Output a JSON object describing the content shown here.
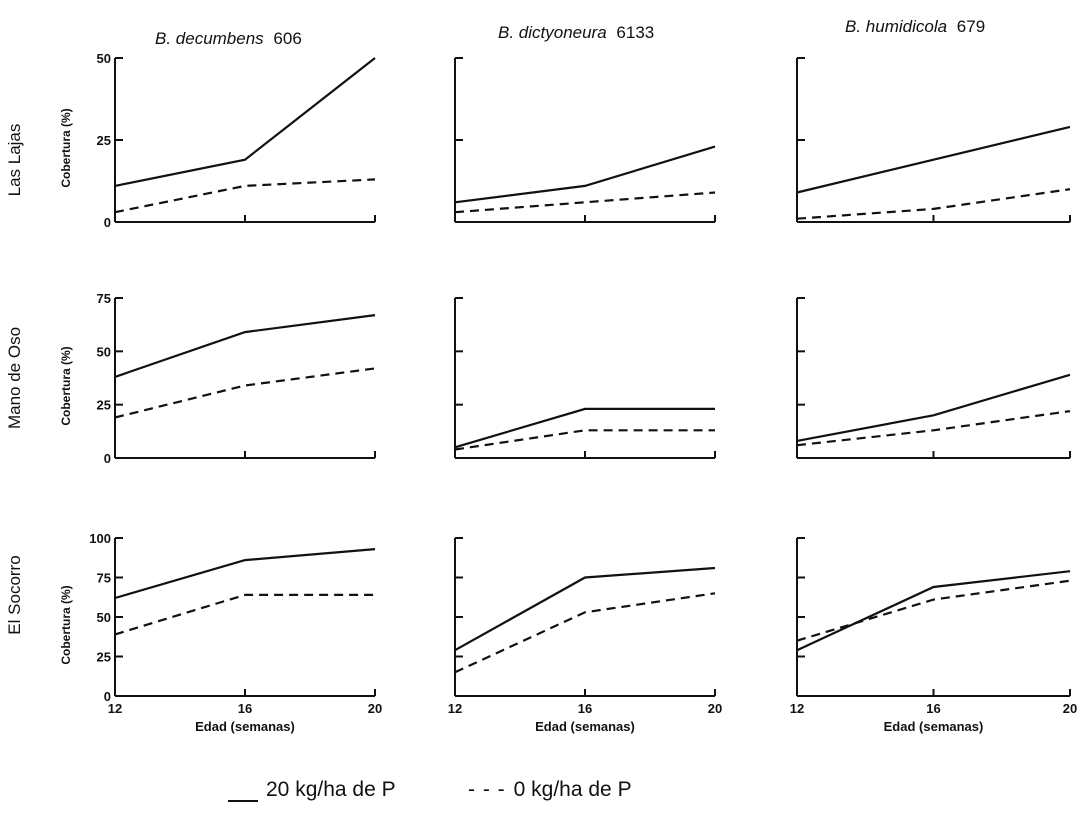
{
  "column_titles": [
    {
      "species": "B. decumbens",
      "accession": "606"
    },
    {
      "species": "B. dictyoneura",
      "accession": "6133"
    },
    {
      "species": "B. humidicola",
      "accession": "679"
    }
  ],
  "row_labels": [
    "Las Lajas",
    "Mano de Oso",
    "El Socorro"
  ],
  "legend": {
    "solid_label": "20 kg/ha de P",
    "dashed_marker": "- - -",
    "dashed_label": "0 kg/ha de P"
  },
  "colors": {
    "line": "#111111",
    "background": "#ffffff"
  },
  "chart_data": [
    {
      "type": "line",
      "row": "Las Lajas",
      "column": "B. decumbens 606",
      "ylabel": "Cobertura (%)",
      "xlabel": "",
      "ylim": [
        0,
        50
      ],
      "yticks": [
        0,
        25,
        50
      ],
      "ytick_labels": [
        "0",
        "25",
        "50"
      ],
      "xlim": [
        12,
        20
      ],
      "xticks": [
        12,
        16,
        20
      ],
      "xtick_labels": [],
      "x": [
        12,
        16,
        20
      ],
      "series": [
        {
          "name": "20 kg/ha de P",
          "style": "solid",
          "values": [
            11,
            19,
            50
          ]
        },
        {
          "name": "0 kg/ha de P",
          "style": "dashed",
          "values": [
            3,
            11,
            13
          ]
        }
      ]
    },
    {
      "type": "line",
      "row": "Las Lajas",
      "column": "B. dictyoneura 6133",
      "ylabel": "",
      "xlabel": "",
      "ylim": [
        0,
        50
      ],
      "yticks": [
        0,
        25,
        50
      ],
      "ytick_labels": [],
      "xlim": [
        12,
        20
      ],
      "xticks": [
        12,
        16,
        20
      ],
      "xtick_labels": [],
      "x": [
        12,
        16,
        20
      ],
      "series": [
        {
          "name": "20 kg/ha de P",
          "style": "solid",
          "values": [
            6,
            11,
            23
          ]
        },
        {
          "name": "0 kg/ha de P",
          "style": "dashed",
          "values": [
            3,
            6,
            9
          ]
        }
      ]
    },
    {
      "type": "line",
      "row": "Las Lajas",
      "column": "B. humidicola 679",
      "ylabel": "",
      "xlabel": "",
      "ylim": [
        0,
        50
      ],
      "yticks": [
        0,
        25,
        50
      ],
      "ytick_labels": [],
      "xlim": [
        12,
        20
      ],
      "xticks": [
        12,
        16,
        20
      ],
      "xtick_labels": [],
      "x": [
        12,
        16,
        20
      ],
      "series": [
        {
          "name": "20 kg/ha de P",
          "style": "solid",
          "values": [
            9,
            19,
            29
          ]
        },
        {
          "name": "0 kg/ha de P",
          "style": "dashed",
          "values": [
            1,
            4,
            10
          ]
        }
      ]
    },
    {
      "type": "line",
      "row": "Mano de Oso",
      "column": "B. decumbens 606",
      "ylabel": "Cobertura (%)",
      "xlabel": "",
      "ylim": [
        0,
        75
      ],
      "yticks": [
        0,
        25,
        50,
        75
      ],
      "ytick_labels": [
        "0",
        "25",
        "50",
        "75"
      ],
      "xlim": [
        12,
        20
      ],
      "xticks": [
        12,
        16,
        20
      ],
      "xtick_labels": [],
      "x": [
        12,
        16,
        20
      ],
      "series": [
        {
          "name": "20 kg/ha de P",
          "style": "solid",
          "values": [
            38,
            59,
            67
          ]
        },
        {
          "name": "0 kg/ha de P",
          "style": "dashed",
          "values": [
            19,
            34,
            42
          ]
        }
      ]
    },
    {
      "type": "line",
      "row": "Mano de Oso",
      "column": "B. dictyoneura 6133",
      "ylabel": "",
      "xlabel": "",
      "ylim": [
        0,
        75
      ],
      "yticks": [
        0,
        25,
        50,
        75
      ],
      "ytick_labels": [],
      "xlim": [
        12,
        20
      ],
      "xticks": [
        12,
        16,
        20
      ],
      "xtick_labels": [],
      "x": [
        12,
        16,
        20
      ],
      "series": [
        {
          "name": "20 kg/ha de P",
          "style": "solid",
          "values": [
            5,
            23,
            23
          ]
        },
        {
          "name": "0 kg/ha de P",
          "style": "dashed",
          "values": [
            4,
            13,
            13
          ]
        }
      ]
    },
    {
      "type": "line",
      "row": "Mano de Oso",
      "column": "B. humidicola 679",
      "ylabel": "",
      "xlabel": "",
      "ylim": [
        0,
        75
      ],
      "yticks": [
        0,
        25,
        50,
        75
      ],
      "ytick_labels": [],
      "xlim": [
        12,
        20
      ],
      "xticks": [
        12,
        16,
        20
      ],
      "xtick_labels": [],
      "x": [
        12,
        16,
        20
      ],
      "series": [
        {
          "name": "20 kg/ha de P",
          "style": "solid",
          "values": [
            8,
            20,
            39
          ]
        },
        {
          "name": "0 kg/ha de P",
          "style": "dashed",
          "values": [
            6,
            13,
            22
          ]
        }
      ]
    },
    {
      "type": "line",
      "row": "El Socorro",
      "column": "B. decumbens 606",
      "ylabel": "Cobertura (%)",
      "xlabel": "Edad (semanas)",
      "ylim": [
        0,
        100
      ],
      "yticks": [
        0,
        25,
        50,
        75,
        100
      ],
      "ytick_labels": [
        "0",
        "25",
        "50",
        "75",
        "100"
      ],
      "xlim": [
        12,
        20
      ],
      "xticks": [
        12,
        16,
        20
      ],
      "xtick_labels": [
        "12",
        "16",
        "20"
      ],
      "x": [
        12,
        16,
        20
      ],
      "series": [
        {
          "name": "20 kg/ha de P",
          "style": "solid",
          "values": [
            62,
            86,
            93
          ]
        },
        {
          "name": "0 kg/ha de P",
          "style": "dashed",
          "values": [
            39,
            64,
            64
          ]
        }
      ]
    },
    {
      "type": "line",
      "row": "El Socorro",
      "column": "B. dictyoneura 6133",
      "ylabel": "",
      "xlabel": "Edad (semanas)",
      "ylim": [
        0,
        100
      ],
      "yticks": [
        0,
        25,
        50,
        75,
        100
      ],
      "ytick_labels": [],
      "xlim": [
        12,
        20
      ],
      "xticks": [
        12,
        16,
        20
      ],
      "xtick_labels": [
        "12",
        "16",
        "20"
      ],
      "x": [
        12,
        16,
        20
      ],
      "series": [
        {
          "name": "20 kg/ha de P",
          "style": "solid",
          "values": [
            29,
            75,
            81
          ]
        },
        {
          "name": "0 kg/ha de P",
          "style": "dashed",
          "values": [
            15,
            53,
            65
          ]
        }
      ]
    },
    {
      "type": "line",
      "row": "El Socorro",
      "column": "B. humidicola 679",
      "ylabel": "",
      "xlabel": "Edad (semanas)",
      "ylim": [
        0,
        100
      ],
      "yticks": [
        0,
        25,
        50,
        75,
        100
      ],
      "ytick_labels": [],
      "xlim": [
        12,
        20
      ],
      "xticks": [
        12,
        16,
        20
      ],
      "xtick_labels": [
        "12",
        "16",
        "20"
      ],
      "x": [
        12,
        16,
        20
      ],
      "series": [
        {
          "name": "20 kg/ha de P",
          "style": "solid",
          "values": [
            29,
            69,
            79
          ]
        },
        {
          "name": "0 kg/ha de P",
          "style": "dashed",
          "values": [
            35,
            61,
            73
          ]
        }
      ]
    }
  ]
}
